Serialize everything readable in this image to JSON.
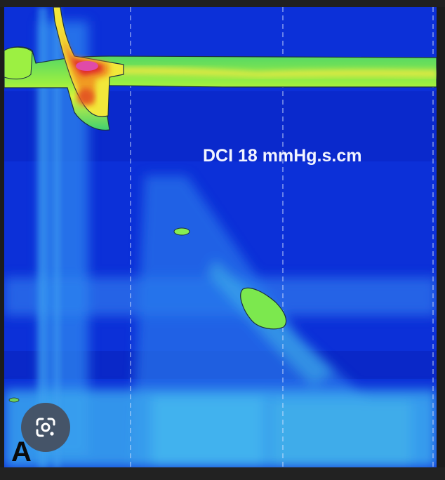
{
  "viewer": {
    "lens_icon": "google-lens-icon",
    "panel_letter": "A"
  },
  "chart_data": {
    "type": "heatmap",
    "title": "",
    "xlabel": "",
    "ylabel": "",
    "annotations": [
      {
        "text": "DCI 18 mmHg.s.cm"
      }
    ],
    "grid": "vertical-dashed",
    "color_scale": [
      "#0a2bd6",
      "#2f8cf0",
      "#45c8e8",
      "#7cf05a",
      "#f2ee3a",
      "#f08a20",
      "#e0282a",
      "#e04aa8"
    ]
  }
}
